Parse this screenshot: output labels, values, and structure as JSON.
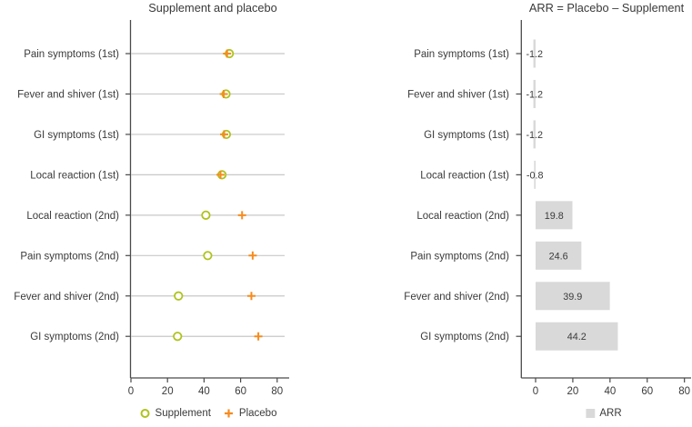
{
  "colors": {
    "text": "#3a3a3a",
    "axis": "#4a4a4a",
    "grid_line": "#c8c8c8",
    "background": "#ffffff"
  },
  "chart_data": [
    {
      "type": "scatter",
      "variant": "horizontal_dot_plot",
      "title": "Supplement and placebo",
      "categories": [
        "Pain symptoms (1st)",
        "Fever and shiver (1st)",
        "GI symptoms (1st)",
        "Local reaction (1st)",
        "Local reaction (2nd)",
        "Pain symptoms (2nd)",
        "Fever and shiver (2nd)",
        "GI symptoms (2nd)"
      ],
      "series": [
        {
          "name": "Supplement",
          "marker": "open-circle",
          "color": "#aec31d",
          "values": [
            53.8,
            52.0,
            52.2,
            49.8,
            41.0,
            42.0,
            26.0,
            25.5
          ]
        },
        {
          "name": "Placebo",
          "marker": "plus",
          "color": "#f68b1f",
          "values": [
            52.6,
            50.8,
            51.0,
            49.0,
            60.8,
            66.6,
            65.9,
            69.7
          ]
        }
      ],
      "xticks": [
        0,
        20,
        40,
        60,
        80
      ],
      "xlim": [
        0,
        86
      ],
      "grid": "per-category horizontal lines",
      "legend_position": "bottom"
    },
    {
      "type": "bar",
      "variant": "horizontal_bars",
      "title": "ARR = Placebo – Supplement",
      "categories": [
        "Pain symptoms (1st)",
        "Fever and shiver (1st)",
        "GI symptoms (1st)",
        "Local reaction (1st)",
        "Local reaction (2nd)",
        "Pain symptoms (2nd)",
        "Fever and shiver (2nd)",
        "GI symptoms (2nd)"
      ],
      "series_name": "ARR",
      "values": [
        -1.2,
        -1.2,
        -1.2,
        -0.8,
        19.8,
        24.6,
        39.9,
        44.2
      ],
      "bar_labels": [
        "-1.2",
        "-1.2",
        "-1.2",
        "-0.8",
        "19.8",
        "24.6",
        "39.9",
        "44.2"
      ],
      "bar_color": "#d9d9d9",
      "xticks": [
        0,
        20,
        40,
        60,
        80
      ],
      "xlim": [
        -8,
        84
      ],
      "grid": "off",
      "legend_position": "bottom"
    }
  ]
}
